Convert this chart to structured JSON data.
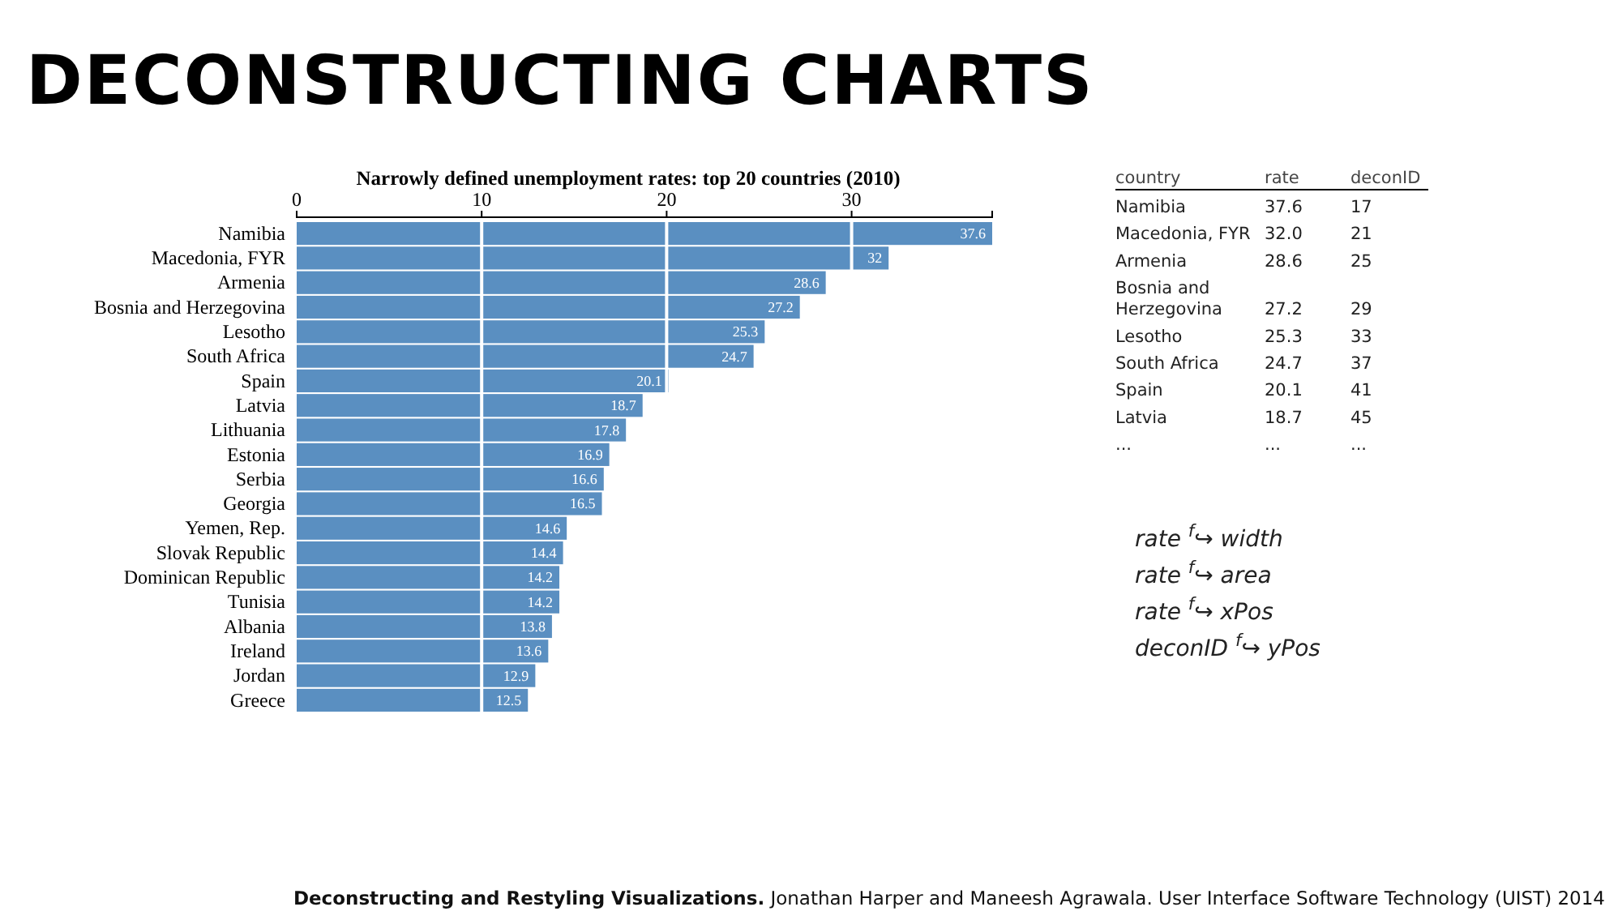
{
  "chart_data": {
    "type": "bar",
    "orientation": "horizontal",
    "title": "DECONSTRUCTING CHARTS",
    "subtitle": "Narrowly defined unemployment rates: top 20 countries (2010)",
    "categories": [
      "Namibia",
      "Macedonia, FYR",
      "Armenia",
      "Bosnia and Herzegovina",
      "Lesotho",
      "South Africa",
      "Spain",
      "Latvia",
      "Lithuania",
      "Estonia",
      "Serbia",
      "Georgia",
      "Yemen, Rep.",
      "Slovak Republic",
      "Dominican Republic",
      "Tunisia",
      "Albania",
      "Ireland",
      "Jordan",
      "Greece"
    ],
    "values": [
      37.6,
      32,
      28.6,
      27.2,
      25.3,
      24.7,
      20.1,
      18.7,
      17.8,
      16.9,
      16.6,
      16.5,
      14.6,
      14.4,
      14.2,
      14.2,
      13.8,
      13.6,
      12.9,
      12.5
    ],
    "color": "#5a8fc1",
    "data_labels": true,
    "xlim": [
      0,
      37.6
    ],
    "xticks": [
      0,
      10,
      20,
      30
    ],
    "grid": "x",
    "annotations": [
      "country",
      "rate",
      "deconID",
      "Namibia",
      "37.6",
      "17",
      "Macedonia, FYR",
      "32.0",
      "21",
      "Armenia",
      "28.6",
      "25",
      "Bosnia and Herzegovina",
      "27.2",
      "29",
      "Lesotho",
      "25.3",
      "33",
      "South Africa",
      "24.7",
      "37",
      "Spain",
      "20.1",
      "41",
      "Latvia",
      "18.7",
      "45",
      "...",
      "...",
      "...",
      "rate $^{f}$↪ width",
      "rate $^{f}$↪ area",
      "rate $^{f}$↪ xPos",
      "deconID $^{f}$↪ yPos",
      "Deconstructing and Restyling Visualizations.",
      "Jonathan Harper and Maneesh Agrawala.  User Interface Software Technology (UIST) 2014"
    ]
  }
}
